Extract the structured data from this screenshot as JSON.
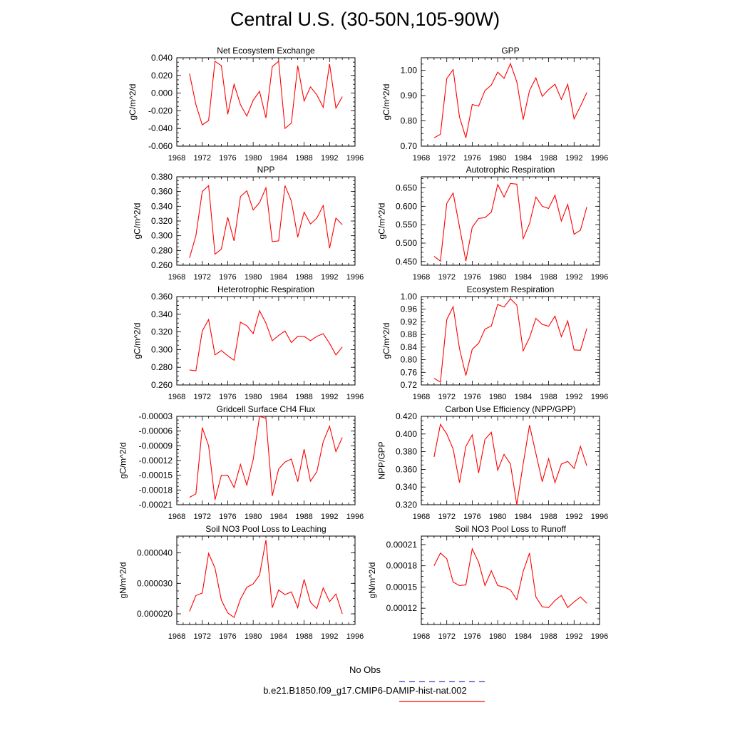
{
  "page_title": "Central U.S. (30-50N,105-90W)",
  "legend": {
    "obs_label": "No Obs",
    "obs_color": "#3333cc",
    "model_label": "b.e21.B1850.f09_g17.CMIP6-DAMIP-hist-nat.002",
    "model_color": "#ff0000"
  },
  "chart_data": [
    {
      "type": "line",
      "title": "Net Ecosystem Exchange",
      "ylabel": "gC/m^2/d",
      "xlim": [
        1968,
        1996
      ],
      "x_ticks": [
        1968,
        1972,
        1976,
        1980,
        1984,
        1988,
        1992,
        1996
      ],
      "x_tick_labels": [
        "1968",
        "1972",
        "1976",
        "1980",
        "1984",
        "1988",
        "1992",
        "1996"
      ],
      "ylim": [
        -0.06,
        0.04
      ],
      "y_ticks": [
        -0.06,
        -0.04,
        -0.02,
        0.0,
        0.02,
        0.04
      ],
      "y_tick_labels": [
        "-0.060",
        "-0.040",
        "-0.020",
        "0.000",
        "0.020",
        "0.040"
      ],
      "series": [
        {
          "color": "#ff0000",
          "x": [
            1970,
            1971,
            1972,
            1973,
            1974,
            1975,
            1976,
            1977,
            1978,
            1979,
            1980,
            1981,
            1982,
            1983,
            1984,
            1985,
            1986,
            1987,
            1988,
            1989,
            1990,
            1991,
            1992,
            1993,
            1994
          ],
          "y": [
            0.022,
            -0.013,
            -0.036,
            -0.031,
            0.036,
            0.031,
            -0.024,
            0.01,
            -0.013,
            -0.026,
            -0.008,
            0.002,
            -0.028,
            0.03,
            0.036,
            -0.04,
            -0.034,
            0.031,
            -0.009,
            0.007,
            -0.002,
            -0.016,
            0.033,
            -0.017,
            -0.004
          ]
        }
      ]
    },
    {
      "type": "line",
      "title": "GPP",
      "ylabel": "gC/m^2/d",
      "xlim": [
        1968,
        1996
      ],
      "x_ticks": [
        1968,
        1972,
        1976,
        1980,
        1984,
        1988,
        1992,
        1996
      ],
      "x_tick_labels": [
        "1968",
        "1972",
        "1976",
        "1980",
        "1984",
        "1988",
        "1992",
        "1996"
      ],
      "ylim": [
        0.7,
        1.05
      ],
      "y_ticks": [
        0.7,
        0.8,
        0.9,
        1.0
      ],
      "y_tick_labels": [
        "0.70",
        "0.80",
        "0.90",
        "1.00"
      ],
      "series": [
        {
          "color": "#ff0000",
          "x": [
            1970,
            1971,
            1972,
            1973,
            1974,
            1975,
            1976,
            1977,
            1978,
            1979,
            1980,
            1981,
            1982,
            1983,
            1984,
            1985,
            1986,
            1987,
            1988,
            1989,
            1990,
            1991,
            1992,
            1993,
            1994
          ],
          "y": [
            0.733,
            0.747,
            0.968,
            1.003,
            0.815,
            0.733,
            0.865,
            0.858,
            0.92,
            0.942,
            0.993,
            0.968,
            1.027,
            0.955,
            0.805,
            0.92,
            0.97,
            0.897,
            0.924,
            0.945,
            0.885,
            0.945,
            0.808,
            0.858,
            0.912
          ]
        }
      ]
    },
    {
      "type": "line",
      "title": "NPP",
      "ylabel": "gC/m^2/d",
      "xlim": [
        1968,
        1996
      ],
      "x_ticks": [
        1968,
        1972,
        1976,
        1980,
        1984,
        1988,
        1992,
        1996
      ],
      "x_tick_labels": [
        "1968",
        "1972",
        "1976",
        "1980",
        "1984",
        "1988",
        "1992",
        "1996"
      ],
      "ylim": [
        0.26,
        0.38
      ],
      "y_ticks": [
        0.26,
        0.28,
        0.3,
        0.32,
        0.34,
        0.36,
        0.38
      ],
      "y_tick_labels": [
        "0.260",
        "0.280",
        "0.300",
        "0.320",
        "0.340",
        "0.360",
        "0.380"
      ],
      "series": [
        {
          "color": "#ff0000",
          "x": [
            1970,
            1971,
            1972,
            1973,
            1974,
            1975,
            1976,
            1977,
            1978,
            1979,
            1980,
            1981,
            1982,
            1983,
            1984,
            1985,
            1986,
            1987,
            1988,
            1989,
            1990,
            1991,
            1992,
            1993,
            1994
          ],
          "y": [
            0.27,
            0.3,
            0.36,
            0.368,
            0.275,
            0.282,
            0.325,
            0.293,
            0.353,
            0.361,
            0.335,
            0.345,
            0.365,
            0.292,
            0.293,
            0.368,
            0.347,
            0.298,
            0.332,
            0.316,
            0.324,
            0.341,
            0.283,
            0.324,
            0.315
          ]
        }
      ]
    },
    {
      "type": "line",
      "title": "Autotrophic Respiration",
      "ylabel": "gC/m^2/d",
      "xlim": [
        1968,
        1996
      ],
      "x_ticks": [
        1968,
        1972,
        1976,
        1980,
        1984,
        1988,
        1992,
        1996
      ],
      "x_tick_labels": [
        "1968",
        "1972",
        "1976",
        "1980",
        "1984",
        "1988",
        "1992",
        "1996"
      ],
      "ylim": [
        0.44,
        0.68
      ],
      "y_ticks": [
        0.45,
        0.5,
        0.55,
        0.6,
        0.65
      ],
      "y_tick_labels": [
        "0.450",
        "0.500",
        "0.550",
        "0.600",
        "0.650"
      ],
      "series": [
        {
          "color": "#ff0000",
          "x": [
            1970,
            1971,
            1972,
            1973,
            1974,
            1975,
            1976,
            1977,
            1978,
            1979,
            1980,
            1981,
            1982,
            1983,
            1984,
            1985,
            1986,
            1987,
            1988,
            1989,
            1990,
            1991,
            1992,
            1993,
            1994
          ],
          "y": [
            0.464,
            0.451,
            0.608,
            0.636,
            0.544,
            0.451,
            0.543,
            0.567,
            0.569,
            0.584,
            0.659,
            0.625,
            0.662,
            0.66,
            0.512,
            0.553,
            0.625,
            0.6,
            0.594,
            0.63,
            0.56,
            0.605,
            0.524,
            0.535,
            0.598
          ]
        }
      ]
    },
    {
      "type": "line",
      "title": "Heterotrophic Respiration",
      "ylabel": "gC/m^2/d",
      "xlim": [
        1968,
        1996
      ],
      "x_ticks": [
        1968,
        1972,
        1976,
        1980,
        1984,
        1988,
        1992,
        1996
      ],
      "x_tick_labels": [
        "1968",
        "1972",
        "1976",
        "1980",
        "1984",
        "1988",
        "1992",
        "1996"
      ],
      "ylim": [
        0.26,
        0.36
      ],
      "y_ticks": [
        0.26,
        0.28,
        0.3,
        0.32,
        0.34,
        0.36
      ],
      "y_tick_labels": [
        "0.260",
        "0.280",
        "0.300",
        "0.320",
        "0.340",
        "0.360"
      ],
      "series": [
        {
          "color": "#ff0000",
          "x": [
            1970,
            1971,
            1972,
            1973,
            1974,
            1975,
            1976,
            1977,
            1978,
            1979,
            1980,
            1981,
            1982,
            1983,
            1984,
            1985,
            1986,
            1987,
            1988,
            1989,
            1990,
            1991,
            1992,
            1993,
            1994
          ],
          "y": [
            0.277,
            0.276,
            0.321,
            0.334,
            0.294,
            0.299,
            0.293,
            0.288,
            0.331,
            0.327,
            0.318,
            0.344,
            0.33,
            0.31,
            0.316,
            0.321,
            0.308,
            0.315,
            0.315,
            0.31,
            0.315,
            0.318,
            0.307,
            0.294,
            0.303
          ]
        }
      ]
    },
    {
      "type": "line",
      "title": "Ecosystem Respiration",
      "ylabel": "gC/m^2/d",
      "xlim": [
        1968,
        1996
      ],
      "x_ticks": [
        1968,
        1972,
        1976,
        1980,
        1984,
        1988,
        1992,
        1996
      ],
      "x_tick_labels": [
        "1968",
        "1972",
        "1976",
        "1980",
        "1984",
        "1988",
        "1992",
        "1996"
      ],
      "ylim": [
        0.72,
        1.0
      ],
      "y_ticks": [
        0.72,
        0.76,
        0.8,
        0.84,
        0.88,
        0.92,
        0.96,
        1.0
      ],
      "y_tick_labels": [
        "0.72",
        "0.76",
        "0.80",
        "0.84",
        "0.88",
        "0.92",
        "0.96",
        "1.00"
      ],
      "series": [
        {
          "color": "#ff0000",
          "x": [
            1970,
            1971,
            1972,
            1973,
            1974,
            1975,
            1976,
            1977,
            1978,
            1979,
            1980,
            1981,
            1982,
            1983,
            1984,
            1985,
            1986,
            1987,
            1988,
            1989,
            1990,
            1991,
            1992,
            1993,
            1994
          ],
          "y": [
            0.741,
            0.729,
            0.927,
            0.968,
            0.835,
            0.75,
            0.833,
            0.852,
            0.897,
            0.907,
            0.975,
            0.967,
            0.993,
            0.973,
            0.828,
            0.87,
            0.931,
            0.912,
            0.906,
            0.938,
            0.873,
            0.923,
            0.831,
            0.83,
            0.899
          ]
        }
      ]
    },
    {
      "type": "line",
      "title": "Gridcell Surface CH4 Flux",
      "ylabel": "gC/m^2/d",
      "xlim": [
        1968,
        1996
      ],
      "x_ticks": [
        1968,
        1972,
        1976,
        1980,
        1984,
        1988,
        1992,
        1996
      ],
      "x_tick_labels": [
        "1968",
        "1972",
        "1976",
        "1980",
        "1984",
        "1988",
        "1992",
        "1996"
      ],
      "ylim": [
        -0.00021,
        -3e-05
      ],
      "y_ticks": [
        -0.00021,
        -0.00018,
        -0.00015,
        -0.00012,
        -9e-05,
        -6e-05,
        -3e-05
      ],
      "y_tick_labels": [
        "-0.00021",
        "-0.00018",
        "-0.00015",
        "-0.00012",
        "-0.00009",
        "-0.00006",
        "-0.00003"
      ],
      "series": [
        {
          "color": "#ff0000",
          "x": [
            1970,
            1971,
            1972,
            1973,
            1974,
            1975,
            1976,
            1977,
            1978,
            1979,
            1980,
            1981,
            1982,
            1983,
            1984,
            1985,
            1986,
            1987,
            1988,
            1989,
            1990,
            1991,
            1992,
            1993,
            1994
          ],
          "y": [
            -0.000195,
            -0.000188,
            -5.3e-05,
            -9e-05,
            -0.0002,
            -0.00015,
            -0.00015,
            -0.000175,
            -0.000128,
            -0.00017,
            -0.000118,
            -3e-05,
            -3.4e-05,
            -0.000192,
            -0.000137,
            -0.000123,
            -0.000117,
            -0.000163,
            -9.7e-05,
            -0.000162,
            -0.000143,
            -8.2e-05,
            -5e-05,
            -0.000102,
            -7.3e-05
          ]
        }
      ]
    },
    {
      "type": "line",
      "title": "Carbon Use Efficiency (NPP/GPP)",
      "ylabel": "NPP/GPP",
      "xlim": [
        1968,
        1996
      ],
      "x_ticks": [
        1968,
        1972,
        1976,
        1980,
        1984,
        1988,
        1992,
        1996
      ],
      "x_tick_labels": [
        "1968",
        "1972",
        "1976",
        "1980",
        "1984",
        "1988",
        "1992",
        "1996"
      ],
      "ylim": [
        0.32,
        0.42
      ],
      "y_ticks": [
        0.32,
        0.34,
        0.36,
        0.38,
        0.4,
        0.42
      ],
      "y_tick_labels": [
        "0.320",
        "0.340",
        "0.360",
        "0.380",
        "0.400",
        "0.420"
      ],
      "series": [
        {
          "color": "#ff0000",
          "x": [
            1970,
            1971,
            1972,
            1973,
            1974,
            1975,
            1976,
            1977,
            1978,
            1979,
            1980,
            1981,
            1982,
            1983,
            1984,
            1985,
            1986,
            1987,
            1988,
            1989,
            1990,
            1991,
            1992,
            1993,
            1994
          ],
          "y": [
            0.374,
            0.411,
            0.4,
            0.383,
            0.345,
            0.386,
            0.399,
            0.356,
            0.394,
            0.402,
            0.359,
            0.377,
            0.366,
            0.32,
            0.366,
            0.41,
            0.378,
            0.346,
            0.372,
            0.345,
            0.366,
            0.369,
            0.361,
            0.386,
            0.364
          ]
        }
      ]
    },
    {
      "type": "line",
      "title": "Soil NO3 Pool Loss to Leaching",
      "ylabel": "gN/m^2/d",
      "xlim": [
        1968,
        1996
      ],
      "x_ticks": [
        1968,
        1972,
        1976,
        1980,
        1984,
        1988,
        1992,
        1996
      ],
      "x_tick_labels": [
        "1968",
        "1972",
        "1976",
        "1980",
        "1984",
        "1988",
        "1992",
        "1996"
      ],
      "ylim": [
        1.65e-05,
        4.55e-05
      ],
      "y_ticks": [
        2e-05,
        3e-05,
        4e-05
      ],
      "y_tick_labels": [
        "0.000020",
        "0.000030",
        "0.000040"
      ],
      "series": [
        {
          "color": "#ff0000",
          "x": [
            1970,
            1971,
            1972,
            1973,
            1974,
            1975,
            1976,
            1977,
            1978,
            1979,
            1980,
            1981,
            1982,
            1983,
            1984,
            1985,
            1986,
            1987,
            1988,
            1989,
            1990,
            1991,
            1992,
            1993,
            1994
          ],
          "y": [
            2.08e-05,
            2.6e-05,
            2.68e-05,
            3.98e-05,
            3.5e-05,
            2.45e-05,
            2.03e-05,
            1.88e-05,
            2.48e-05,
            2.87e-05,
            2.98e-05,
            3.27e-05,
            4.42e-05,
            2.2e-05,
            2.78e-05,
            2.63e-05,
            2.72e-05,
            2.2e-05,
            3.13e-05,
            2.38e-05,
            2.17e-05,
            2.85e-05,
            2.4e-05,
            2.65e-05,
            2e-05
          ]
        }
      ]
    },
    {
      "type": "line",
      "title": "Soil NO3 Pool Loss to Runoff",
      "ylabel": "gN/m^2/d",
      "xlim": [
        1968,
        1996
      ],
      "x_ticks": [
        1968,
        1972,
        1976,
        1980,
        1984,
        1988,
        1992,
        1996
      ],
      "x_tick_labels": [
        "1968",
        "1972",
        "1976",
        "1980",
        "1984",
        "1988",
        "1992",
        "1996"
      ],
      "ylim": [
        9.7e-05,
        0.000222
      ],
      "y_ticks": [
        0.00012,
        0.00015,
        0.00018,
        0.00021
      ],
      "y_tick_labels": [
        "0.00012",
        "0.00015",
        "0.00018",
        "0.00021"
      ],
      "series": [
        {
          "color": "#ff0000",
          "x": [
            1970,
            1971,
            1972,
            1973,
            1974,
            1975,
            1976,
            1977,
            1978,
            1979,
            1980,
            1981,
            1982,
            1983,
            1984,
            1985,
            1986,
            1987,
            1988,
            1989,
            1990,
            1991,
            1992,
            1993,
            1994
          ],
          "y": [
            0.00018,
            0.000198,
            0.00019,
            0.000157,
            0.000152,
            0.000153,
            0.000204,
            0.000185,
            0.000152,
            0.000173,
            0.000152,
            0.00015,
            0.000146,
            0.000132,
            0.000172,
            0.000198,
            0.000136,
            0.000122,
            0.000121,
            0.000131,
            0.000138,
            0.000121,
            0.000129,
            0.000136,
            0.000127
          ]
        }
      ]
    }
  ]
}
